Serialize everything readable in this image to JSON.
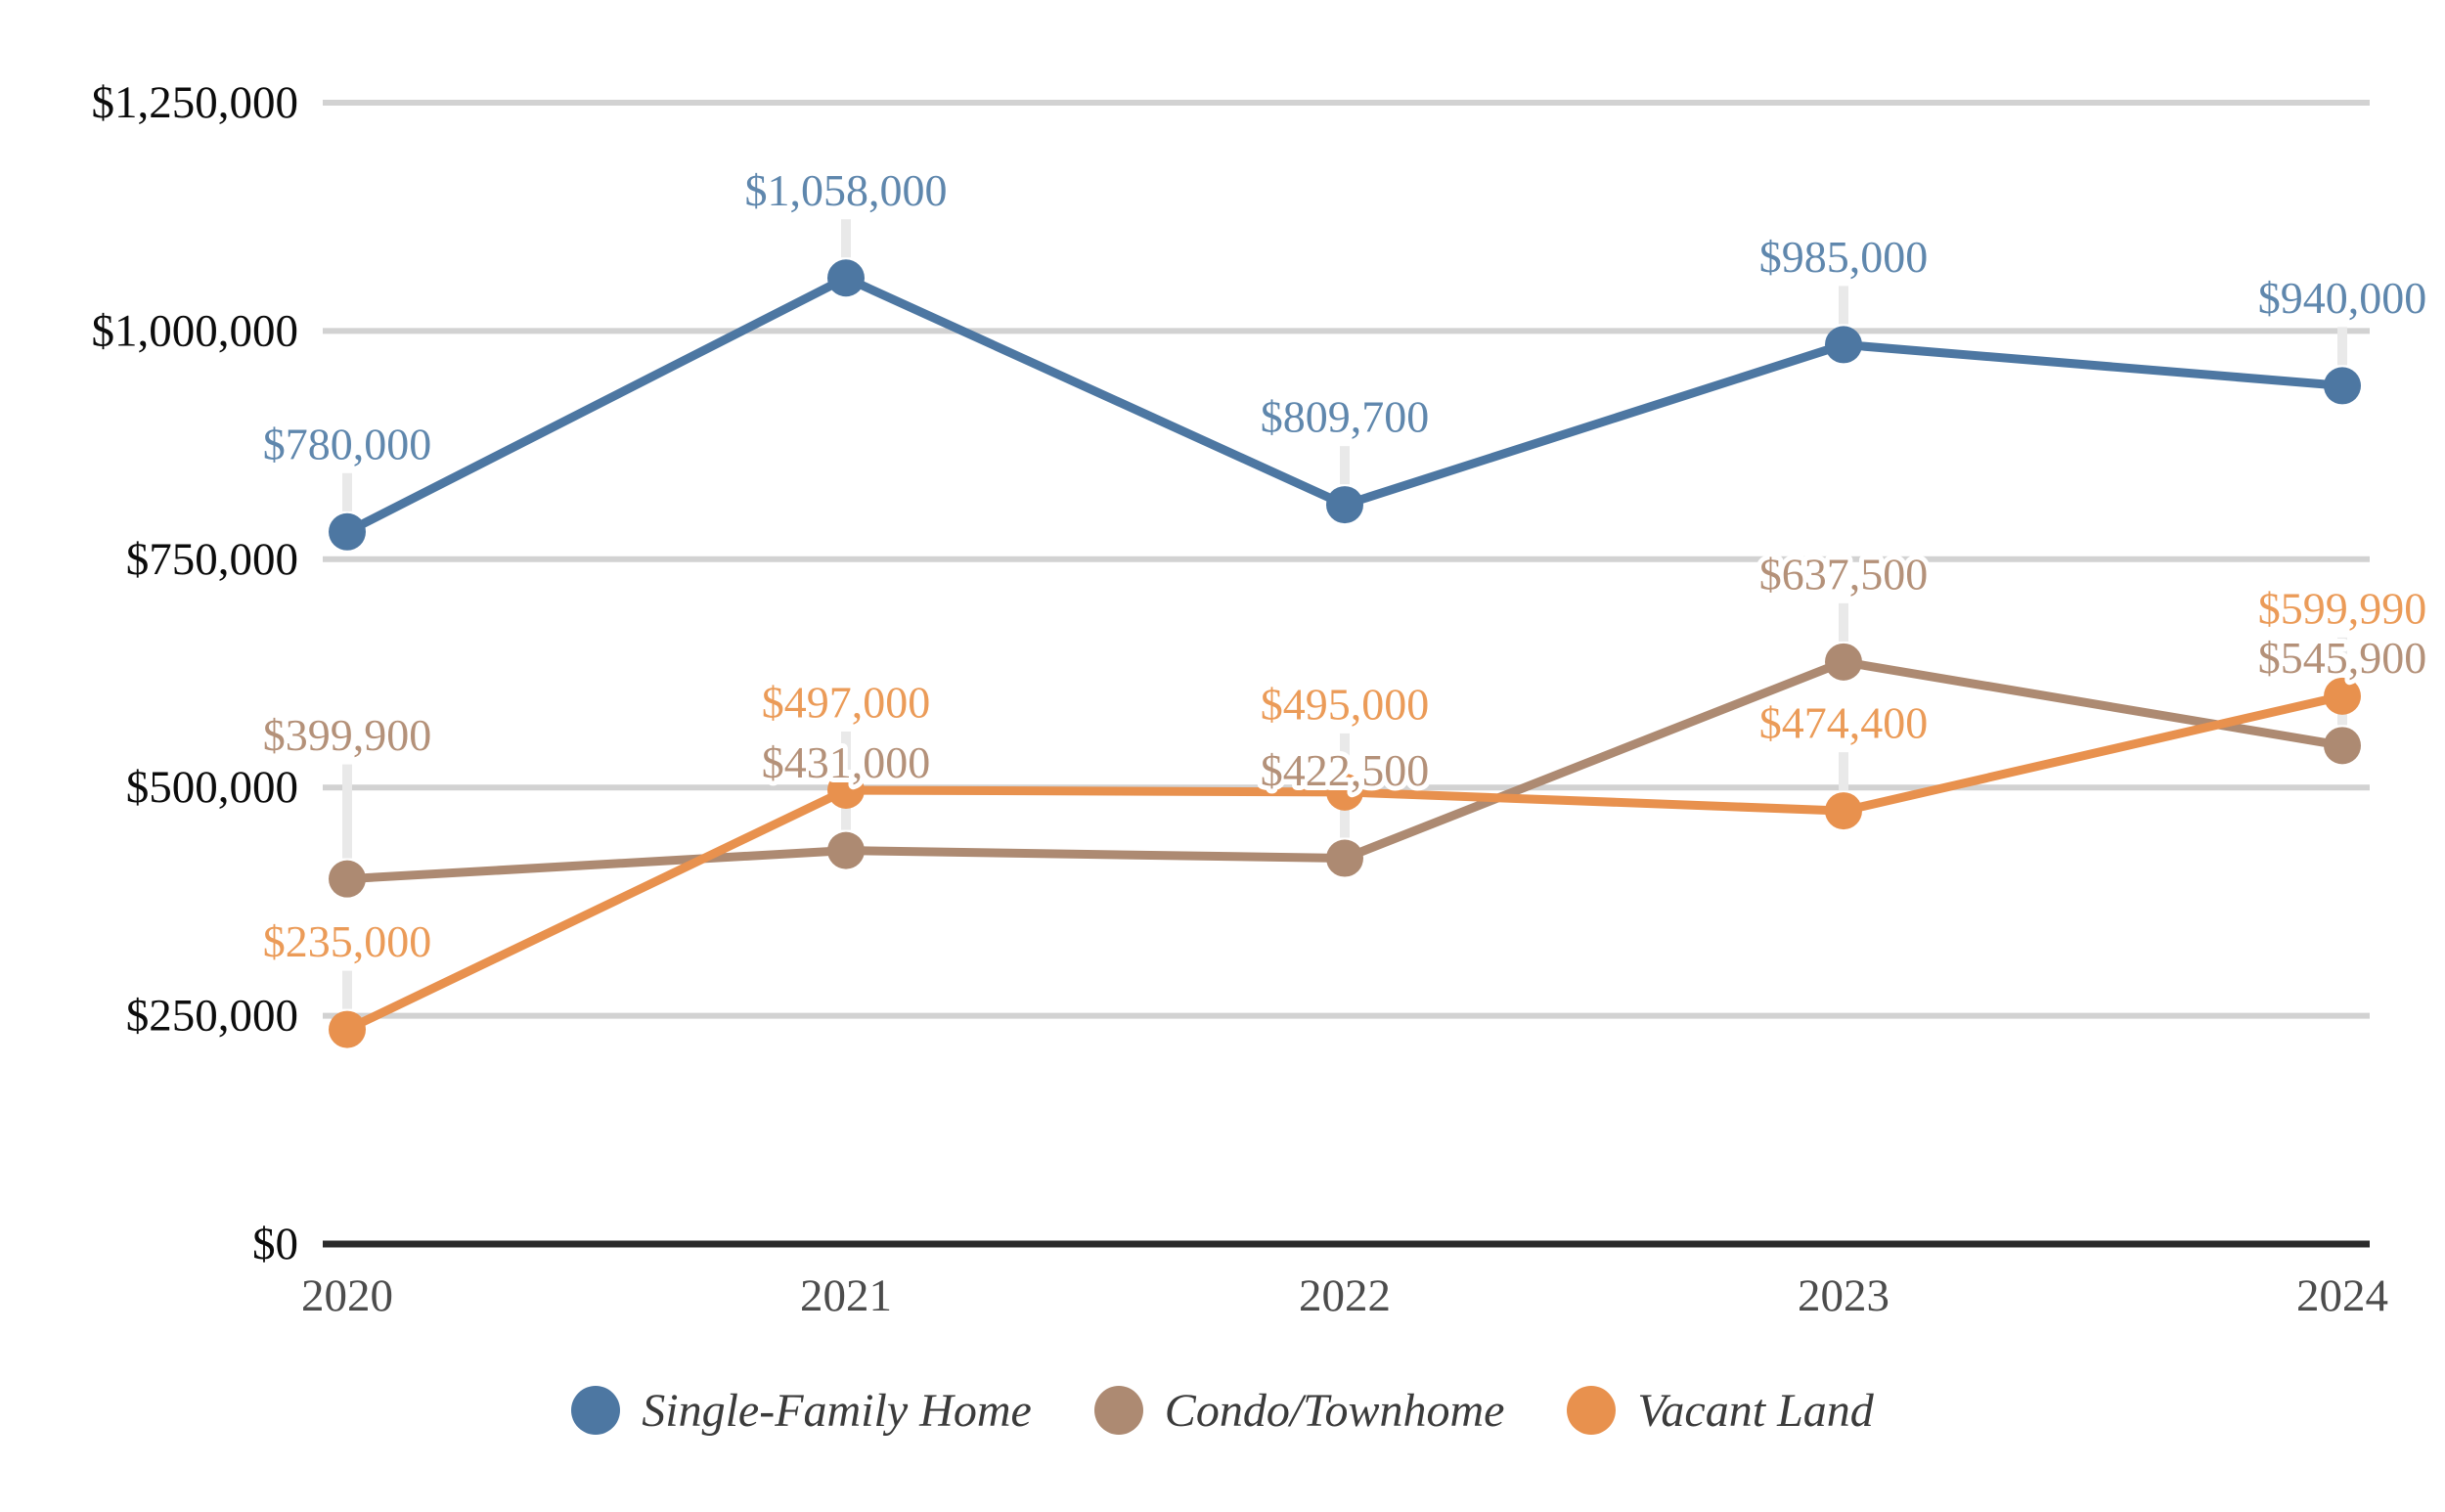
{
  "chart_data": {
    "type": "line",
    "title": "",
    "categories": [
      "2020",
      "2021",
      "2022",
      "2023",
      "2024"
    ],
    "series": [
      {
        "name": "Single-Family Home",
        "color": "#4d77a2",
        "label_color": "#5f87ad",
        "values": [
          780000,
          1058000,
          809700,
          985000,
          940000
        ],
        "labels": [
          "$780,000",
          "$1,058,000",
          "$809,700",
          "$985,000",
          "$940,000"
        ]
      },
      {
        "name": "Condo/Townhome",
        "color": "#ad8a72",
        "label_color": "#b49179",
        "values": [
          399900,
          431000,
          422500,
          637500,
          545900
        ],
        "labels": [
          "$399,900",
          "$431,000",
          "$422,500",
          "$637,500",
          "$545,900"
        ]
      },
      {
        "name": "Vacant Land",
        "color": "#e8914e",
        "label_color": "#eb9b58",
        "values": [
          235000,
          497000,
          495000,
          474400,
          599990
        ],
        "labels": [
          "$235,000",
          "$497,000",
          "$495,000",
          "$474,400",
          "$599,990"
        ]
      }
    ],
    "y_axis": {
      "min": 0,
      "max": 1250000,
      "tick_step": 250000,
      "tick_values": [
        0,
        250000,
        500000,
        750000,
        1000000,
        1250000
      ],
      "tick_labels": [
        "$0",
        "$250,000",
        "$500,000",
        "$750,000",
        "$1,000,000",
        "$1,250,000"
      ]
    },
    "x_axis": {
      "tick_labels": [
        "2020",
        "2021",
        "2022",
        "2023",
        "2024"
      ]
    },
    "legend": {
      "position": "bottom",
      "items": [
        "Single-Family Home",
        "Condo/Townhome",
        "Vacant Land"
      ]
    },
    "grid": true,
    "colors": {
      "background": "#ffffff",
      "gridline": "#d2d2d2",
      "axis_line": "#2b2b2b",
      "leader_line": "#e9e9e9",
      "y_tick_text": "#0c0c0c",
      "x_tick_text": "#4c4c4c",
      "legend_text": "#3b3b3b"
    },
    "annotations": {
      "label_dy_default": 90,
      "label_dy_overrides": [
        {
          "series_index": 1,
          "point_index": 0,
          "dy": 147
        }
      ]
    }
  }
}
